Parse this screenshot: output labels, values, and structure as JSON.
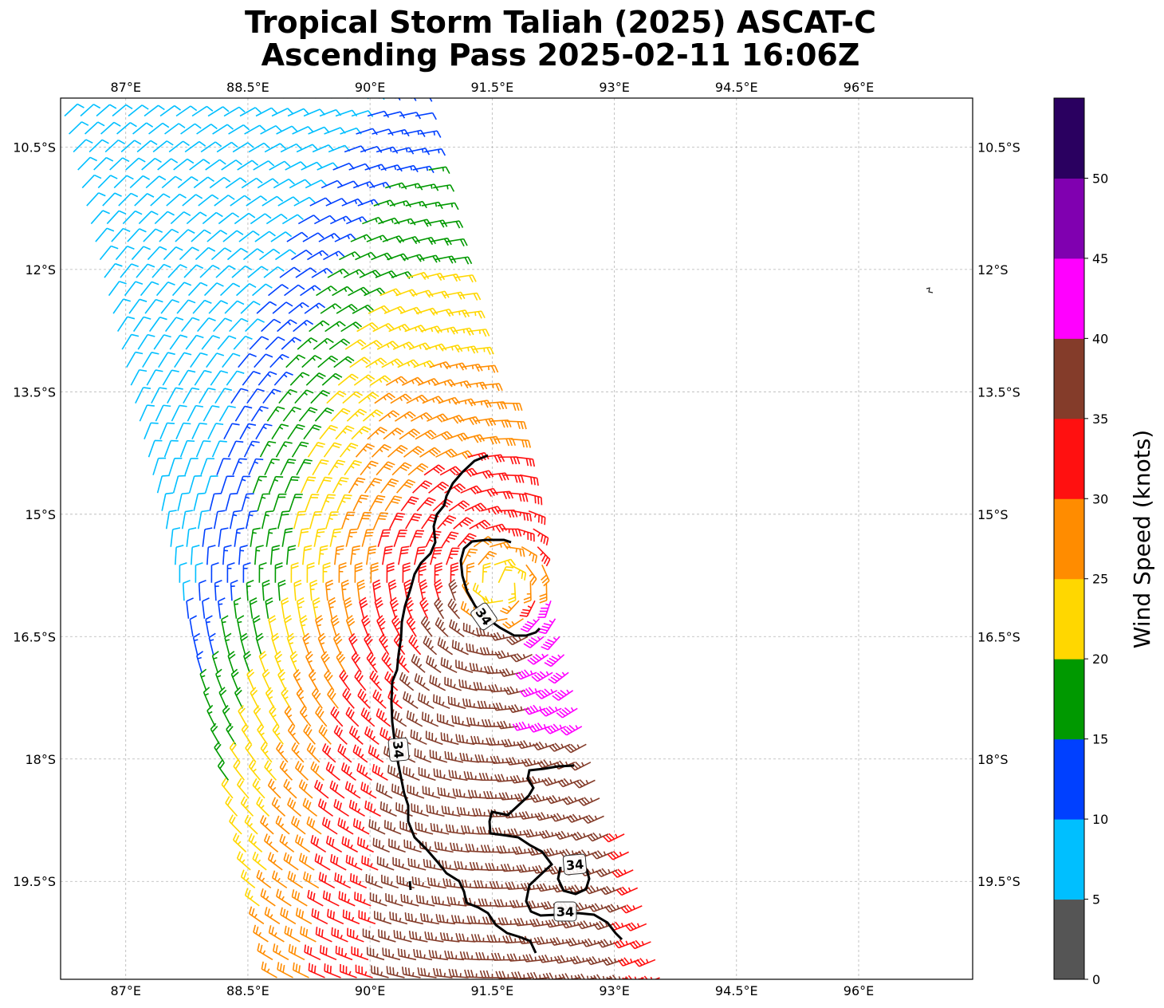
{
  "title": {
    "line1": "Tropical Storm Taliah (2025) ASCAT-C",
    "line2": "Ascending Pass 2025-02-11 16:06Z"
  },
  "map": {
    "lon_range": [
      86.2,
      97.4
    ],
    "lat_range": [
      -20.7,
      -9.9
    ],
    "lon_ticks": [
      87,
      88.5,
      90,
      91.5,
      93,
      94.5,
      96
    ],
    "lon_tick_labels": [
      "87°E",
      "88.5°E",
      "90°E",
      "91.5°E",
      "93°E",
      "94.5°E",
      "96°E"
    ],
    "lat_ticks": [
      -10.5,
      -12,
      -13.5,
      -15,
      -16.5,
      -18,
      -19.5
    ],
    "lat_tick_labels": [
      "10.5°S",
      "12°S",
      "13.5°S",
      "15°S",
      "16.5°S",
      "18°S",
      "19.5°S"
    ],
    "storm_center": {
      "lon": 91.6,
      "lat": -15.85
    },
    "contour_level": "34",
    "contour_label_text": [
      "34",
      "34",
      "34",
      "34"
    ]
  },
  "colorbar": {
    "label": "Wind Speed (knots)",
    "levels": [
      0,
      5,
      10,
      15,
      20,
      25,
      30,
      35,
      40,
      45,
      50,
      55
    ],
    "tick_labels": [
      "0",
      "5",
      "10",
      "15",
      "20",
      "25",
      "30",
      "35",
      "40",
      "45",
      "50"
    ],
    "colors": [
      "#555555",
      "#00bfff",
      "#0040ff",
      "#009900",
      "#ffd700",
      "#ff8c00",
      "#ff1010",
      "#843c2a",
      "#ff00ff",
      "#8000b0",
      "#2a0060"
    ]
  }
}
